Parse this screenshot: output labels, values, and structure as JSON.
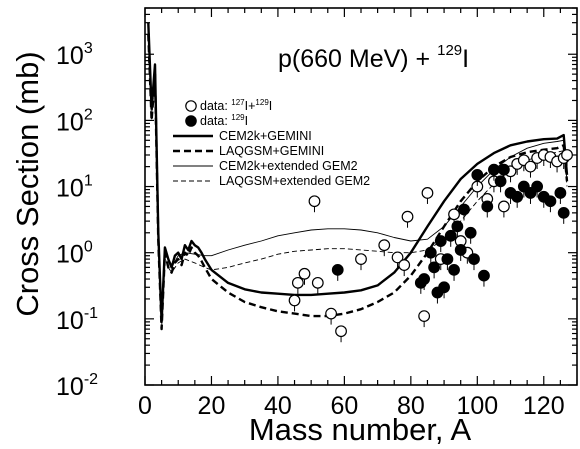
{
  "chart_data": {
    "type": "line",
    "title_parts": {
      "prefix": "p(660 MeV) + ",
      "mass": "129",
      "element": "I"
    },
    "xlabel": "Mass number, A",
    "ylabel": "Cross Section (mb)",
    "xlim": [
      0,
      130
    ],
    "ylim": [
      0.01,
      5000
    ],
    "yscale": "log",
    "x_ticks": [
      "0",
      "20",
      "40",
      "60",
      "80",
      "100",
      "120"
    ],
    "y_ticks": [
      {
        "base": "10",
        "exp": "3"
      },
      {
        "base": "10",
        "exp": "2"
      },
      {
        "base": "10",
        "exp": "1"
      },
      {
        "base": "10",
        "exp": "0"
      },
      {
        "base": "10",
        "exp": "-1"
      },
      {
        "base": "10",
        "exp": "-2"
      }
    ],
    "legend_position": "top-left",
    "legend": [
      {
        "marker": "open-circle",
        "parts": [
          {
            "t": "data: "
          },
          {
            "t": "127",
            "sup": true
          },
          {
            "t": "I+"
          },
          {
            "t": "129",
            "sup": true
          },
          {
            "t": "I"
          }
        ]
      },
      {
        "marker": "filled-circle",
        "parts": [
          {
            "t": "data: "
          },
          {
            "t": "129",
            "sup": true
          },
          {
            "t": "I"
          }
        ]
      },
      {
        "line": "thick-solid",
        "parts": [
          {
            "t": "CEM2k+GEMINI"
          }
        ]
      },
      {
        "line": "thick-dashed",
        "parts": [
          {
            "t": "LAQGSM+GEMINI"
          }
        ]
      },
      {
        "line": "thin-solid",
        "parts": [
          {
            "t": "CEM2k+extended GEM2"
          }
        ]
      },
      {
        "line": "thin-dashed",
        "parts": [
          {
            "t": "LAQGSM+extended GEM2"
          }
        ]
      }
    ],
    "series": [
      {
        "name": "data: 127I+129I",
        "style": "open-circle",
        "points": [
          [
            45,
            0.19
          ],
          [
            46,
            0.35
          ],
          [
            48,
            0.48
          ],
          [
            51,
            6
          ],
          [
            52,
            0.35
          ],
          [
            56,
            0.12
          ],
          [
            59,
            0.065
          ],
          [
            65,
            0.8
          ],
          [
            72,
            1.3
          ],
          [
            76,
            0.85
          ],
          [
            78,
            0.65
          ],
          [
            79,
            3.5
          ],
          [
            84,
            0.11
          ],
          [
            85,
            8
          ],
          [
            89,
            0.8
          ],
          [
            93,
            3.8
          ],
          [
            95,
            1.5
          ],
          [
            97,
            1.0
          ],
          [
            100,
            10
          ],
          [
            103,
            6.5
          ],
          [
            105,
            12
          ],
          [
            108,
            5
          ],
          [
            110,
            17
          ],
          [
            112,
            22
          ],
          [
            114,
            25
          ],
          [
            116,
            20
          ],
          [
            118,
            27
          ],
          [
            120,
            30
          ],
          [
            122,
            28
          ],
          [
            124,
            24
          ],
          [
            126,
            27
          ],
          [
            127,
            30
          ]
        ]
      },
      {
        "name": "data: 129I",
        "style": "filled-circle",
        "points": [
          [
            58,
            0.55
          ],
          [
            83,
            0.35
          ],
          [
            84,
            0.4
          ],
          [
            86,
            1.0
          ],
          [
            87,
            0.6
          ],
          [
            88,
            0.25
          ],
          [
            89,
            1.5
          ],
          [
            90,
            0.3
          ],
          [
            91,
            0.8
          ],
          [
            92,
            1.8
          ],
          [
            93,
            0.55
          ],
          [
            94,
            2.5
          ],
          [
            95,
            1.1
          ],
          [
            96,
            4.5
          ],
          [
            98,
            2.0
          ],
          [
            99,
            0.8
          ],
          [
            100,
            15
          ],
          [
            102,
            0.45
          ],
          [
            103,
            5
          ],
          [
            105,
            18
          ],
          [
            107,
            12
          ],
          [
            108,
            18
          ],
          [
            110,
            8
          ],
          [
            112,
            7
          ],
          [
            114,
            10
          ],
          [
            116,
            8
          ],
          [
            118,
            10
          ],
          [
            120,
            7
          ],
          [
            122,
            6
          ],
          [
            125,
            8
          ],
          [
            126,
            4.0
          ]
        ]
      },
      {
        "name": "CEM2k+GEMINI",
        "style": "thick-solid",
        "points": [
          [
            1,
            3000
          ],
          [
            2,
            150
          ],
          [
            3,
            700
          ],
          [
            4,
            2
          ],
          [
            5,
            0.09
          ],
          [
            6,
            1.2
          ],
          [
            7,
            0.8
          ],
          [
            8,
            0.6
          ],
          [
            9,
            0.9
          ],
          [
            10,
            1.0
          ],
          [
            11,
            0.8
          ],
          [
            12,
            1.3
          ],
          [
            13,
            1.1
          ],
          [
            14,
            1.5
          ],
          [
            15,
            1.3
          ],
          [
            16,
            1.2
          ],
          [
            17,
            1.0
          ],
          [
            18,
            0.8
          ],
          [
            20,
            0.55
          ],
          [
            25,
            0.35
          ],
          [
            30,
            0.28
          ],
          [
            35,
            0.25
          ],
          [
            40,
            0.24
          ],
          [
            45,
            0.23
          ],
          [
            50,
            0.23
          ],
          [
            55,
            0.24
          ],
          [
            60,
            0.25
          ],
          [
            65,
            0.27
          ],
          [
            70,
            0.32
          ],
          [
            75,
            0.5
          ],
          [
            80,
            1.0
          ],
          [
            85,
            2.5
          ],
          [
            90,
            6
          ],
          [
            95,
            13
          ],
          [
            100,
            22
          ],
          [
            105,
            32
          ],
          [
            110,
            42
          ],
          [
            115,
            48
          ],
          [
            120,
            52
          ],
          [
            124,
            53
          ],
          [
            126,
            60
          ],
          [
            127,
            15
          ]
        ]
      },
      {
        "name": "LAQGSM+GEMINI",
        "style": "thick-dashed",
        "points": [
          [
            1,
            2000
          ],
          [
            2,
            100
          ],
          [
            3,
            500
          ],
          [
            4,
            1.5
          ],
          [
            5,
            0.07
          ],
          [
            6,
            1.0
          ],
          [
            7,
            0.6
          ],
          [
            8,
            0.5
          ],
          [
            9,
            0.7
          ],
          [
            10,
            0.8
          ],
          [
            11,
            0.65
          ],
          [
            12,
            1.0
          ],
          [
            13,
            0.9
          ],
          [
            14,
            1.2
          ],
          [
            15,
            1.0
          ],
          [
            16,
            0.9
          ],
          [
            17,
            0.75
          ],
          [
            18,
            0.6
          ],
          [
            20,
            0.4
          ],
          [
            25,
            0.25
          ],
          [
            30,
            0.18
          ],
          [
            35,
            0.15
          ],
          [
            40,
            0.13
          ],
          [
            45,
            0.12
          ],
          [
            50,
            0.11
          ],
          [
            55,
            0.11
          ],
          [
            60,
            0.12
          ],
          [
            65,
            0.14
          ],
          [
            70,
            0.18
          ],
          [
            75,
            0.25
          ],
          [
            80,
            0.45
          ],
          [
            85,
            1.0
          ],
          [
            90,
            2.5
          ],
          [
            95,
            6
          ],
          [
            100,
            12
          ],
          [
            105,
            20
          ],
          [
            110,
            28
          ],
          [
            115,
            33
          ],
          [
            120,
            36
          ],
          [
            124,
            38
          ],
          [
            126,
            42
          ],
          [
            127,
            12
          ]
        ]
      },
      {
        "name": "CEM2k+extended GEM2",
        "style": "thin-solid",
        "points": [
          [
            1,
            3000
          ],
          [
            2,
            150
          ],
          [
            3,
            700
          ],
          [
            4,
            2
          ],
          [
            5,
            0.09
          ],
          [
            6,
            1.2
          ],
          [
            7,
            0.8
          ],
          [
            8,
            0.6
          ],
          [
            10,
            0.9
          ],
          [
            12,
            1.0
          ],
          [
            15,
            0.95
          ],
          [
            18,
            0.9
          ],
          [
            20,
            0.9
          ],
          [
            25,
            1.1
          ],
          [
            30,
            1.3
          ],
          [
            35,
            1.5
          ],
          [
            40,
            1.8
          ],
          [
            45,
            2.0
          ],
          [
            50,
            2.2
          ],
          [
            55,
            2.3
          ],
          [
            60,
            2.3
          ],
          [
            65,
            2.2
          ],
          [
            70,
            2.0
          ],
          [
            75,
            1.7
          ],
          [
            80,
            1.5
          ],
          [
            85,
            1.6
          ],
          [
            90,
            2.5
          ],
          [
            95,
            5
          ],
          [
            100,
            10
          ],
          [
            105,
            18
          ],
          [
            110,
            28
          ],
          [
            115,
            38
          ],
          [
            120,
            45
          ],
          [
            124,
            48
          ],
          [
            126,
            50
          ],
          [
            127,
            12
          ]
        ]
      },
      {
        "name": "LAQGSM+extended GEM2",
        "style": "thin-dashed",
        "points": [
          [
            1,
            2000
          ],
          [
            2,
            100
          ],
          [
            3,
            500
          ],
          [
            4,
            1.5
          ],
          [
            5,
            0.07
          ],
          [
            6,
            1.0
          ],
          [
            7,
            0.6
          ],
          [
            8,
            0.5
          ],
          [
            10,
            0.7
          ],
          [
            12,
            0.8
          ],
          [
            15,
            0.7
          ],
          [
            18,
            0.6
          ],
          [
            20,
            0.55
          ],
          [
            25,
            0.6
          ],
          [
            30,
            0.7
          ],
          [
            35,
            0.8
          ],
          [
            40,
            0.95
          ],
          [
            45,
            1.05
          ],
          [
            50,
            1.1
          ],
          [
            55,
            1.15
          ],
          [
            60,
            1.15
          ],
          [
            65,
            1.1
          ],
          [
            70,
            1.05
          ],
          [
            75,
            1.0
          ],
          [
            80,
            1.0
          ],
          [
            85,
            1.1
          ],
          [
            90,
            1.6
          ],
          [
            95,
            3
          ],
          [
            100,
            6
          ],
          [
            105,
            11
          ],
          [
            110,
            18
          ],
          [
            115,
            25
          ],
          [
            120,
            30
          ],
          [
            124,
            33
          ],
          [
            126,
            35
          ],
          [
            127,
            10
          ]
        ]
      }
    ]
  }
}
